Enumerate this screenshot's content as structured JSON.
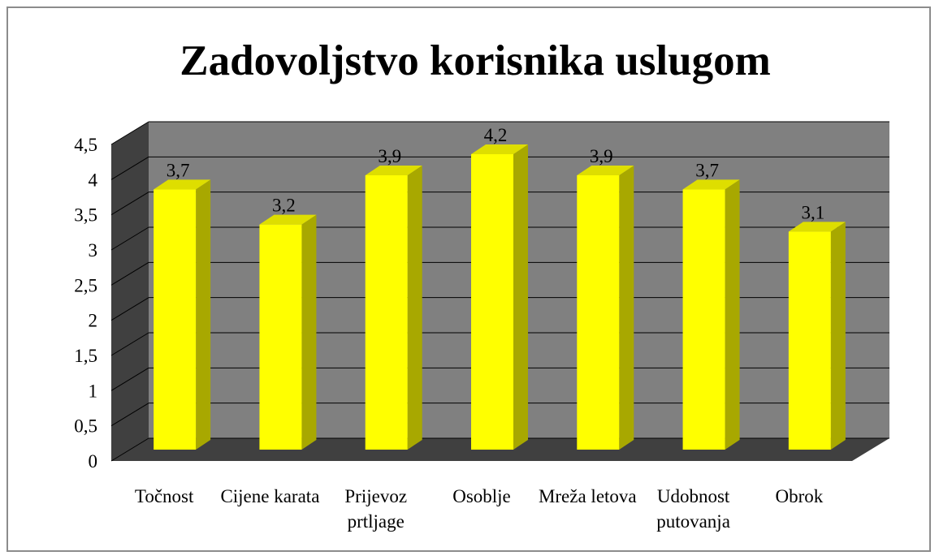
{
  "chart_data": {
    "type": "bar3d",
    "title": "Zadovoljstvo korisnika uslugom",
    "categories": [
      "Točnost",
      "Cijene karata",
      "Prijevoz prtljage",
      "Osoblje",
      "Mreža letova",
      "Udobnost putovanja",
      "Obrok"
    ],
    "values": [
      3.7,
      3.2,
      3.9,
      4.2,
      3.9,
      3.7,
      3.1
    ],
    "value_labels": [
      "3,7",
      "3,2",
      "3,9",
      "4,2",
      "3,9",
      "3,7",
      "3,1"
    ],
    "color": "#ffff00",
    "ylim": [
      0,
      4.5
    ],
    "yticks": [
      0,
      {
        "value": 0.5,
        "label": "0,5"
      },
      1,
      {
        "value": 1.5,
        "label": "1,5"
      },
      2,
      {
        "value": 2.5,
        "label": "2,5"
      },
      3,
      {
        "value": 3.5,
        "label": "3,5"
      },
      4,
      {
        "value": 4.5,
        "label": "4,5"
      }
    ],
    "grid": true
  }
}
